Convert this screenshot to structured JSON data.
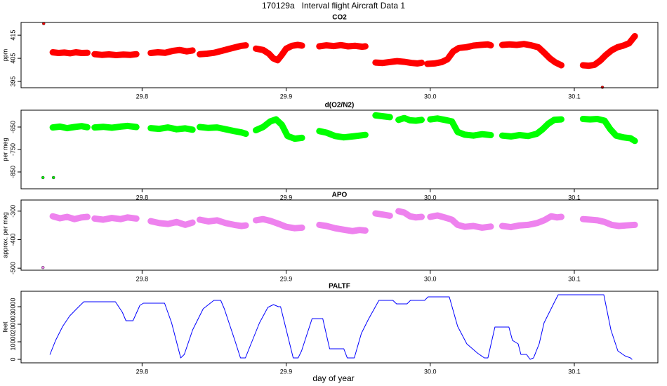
{
  "title": "170129a   Interval flight Aircraft Data 1",
  "xlabel": "day of year",
  "chart_data": [
    {
      "type": "scatter",
      "title": "CO2",
      "ylabel": "ppm",
      "color": "#ff0000",
      "xlim": [
        29.716,
        30.158
      ],
      "ylim": [
        392.3,
        420.5
      ],
      "xticks": [
        29.8,
        29.9,
        {
          "value": 30,
          "label": "30.0"
        },
        30.1
      ],
      "yticks": [
        395,
        405,
        415
      ],
      "x": [
        29.7317,
        null,
        29.738,
        29.742,
        29.746,
        29.75,
        29.754,
        29.758,
        29.762,
        null,
        29.767,
        29.772,
        29.777,
        29.782,
        29.787,
        29.792,
        29.796,
        null,
        29.806,
        29.811,
        29.816,
        29.821,
        29.826,
        29.831,
        29.835,
        null,
        29.84,
        29.845,
        29.85,
        29.855,
        29.86,
        29.865,
        29.869,
        29.872,
        null,
        29.879,
        29.884,
        29.888,
        29.891,
        29.894,
        29.897,
        29.9,
        29.904,
        29.908,
        29.911,
        null,
        29.923,
        29.928,
        29.933,
        29.938,
        29.943,
        29.948,
        29.953,
        29.955,
        null,
        29.962,
        29.967,
        29.972,
        29.977,
        29.982,
        29.987,
        29.991,
        29.994,
        null,
        29.998,
        30.003,
        30.008,
        30.012,
        30.016,
        30.02,
        30.025,
        30.03,
        30.035,
        30.04,
        30.042,
        null,
        30.05,
        30.055,
        30.06,
        30.065,
        30.07,
        30.075,
        30.079,
        30.083,
        30.087,
        30.091,
        null,
        30.106,
        30.11,
        30.114,
        30.118,
        30.122,
        30.126,
        30.13,
        30.134,
        30.138,
        30.141,
        30.142,
        null,
        30.1195
      ],
      "values": [
        420,
        null,
        407.6,
        407.3,
        407.5,
        407.2,
        407.6,
        407.3,
        407.4,
        null,
        406.8,
        406.5,
        406.7,
        406.4,
        406.6,
        406.5,
        406.8,
        null,
        407.3,
        407.6,
        407.4,
        408.2,
        408.6,
        408.0,
        408.4,
        null,
        406.8,
        407.0,
        407.4,
        408.2,
        409.0,
        409.8,
        410.4,
        410.6,
        null,
        409.2,
        408.6,
        407.0,
        405.0,
        404.2,
        406.5,
        409.2,
        410.4,
        410.8,
        410.5,
        null,
        410.2,
        410.6,
        410.3,
        410.7,
        410.2,
        410.4,
        410.0,
        410.2,
        null,
        403.2,
        403.0,
        403.4,
        403.8,
        403.5,
        403.0,
        402.8,
        403.1,
        null,
        402.6,
        402.8,
        403.4,
        404.6,
        408.0,
        409.5,
        409.8,
        410.5,
        410.8,
        411.0,
        410.6,
        null,
        410.8,
        411.0,
        410.8,
        411.2,
        410.6,
        409.8,
        407.5,
        405.0,
        403.2,
        402.0,
        null,
        402.0,
        401.8,
        402.2,
        404.0,
        406.5,
        408.5,
        409.8,
        410.5,
        411.5,
        413.8,
        414.6,
        null,
        392.5
      ]
    },
    {
      "type": "scatter",
      "title": "d(O2/N2)",
      "ylabel": "per meg",
      "color": "#00ff00",
      "xlim": [
        29.716,
        30.158
      ],
      "ylim": [
        -925,
        -575
      ],
      "xticks": [
        29.8,
        29.9,
        {
          "value": 30,
          "label": "30.0"
        },
        30.1
      ],
      "yticks": [
        -850,
        -750,
        -650
      ],
      "x": [
        29.7312,
        null,
        29.7385,
        null,
        29.738,
        29.743,
        29.748,
        29.753,
        29.758,
        29.762,
        null,
        29.767,
        29.773,
        29.779,
        29.785,
        29.79,
        29.796,
        null,
        29.806,
        29.812,
        29.818,
        29.824,
        29.83,
        29.835,
        null,
        29.84,
        29.846,
        29.852,
        29.858,
        29.864,
        29.869,
        29.872,
        null,
        29.879,
        29.884,
        29.889,
        29.893,
        29.897,
        29.901,
        29.906,
        29.911,
        null,
        29.923,
        29.928,
        29.934,
        29.94,
        29.946,
        29.951,
        29.955,
        null,
        29.962,
        29.967,
        29.972,
        null,
        29.978,
        29.982,
        29.986,
        29.99,
        29.994,
        null,
        30.0,
        30.005,
        30.01,
        30.015,
        30.019,
        30.024,
        30.03,
        30.036,
        30.042,
        null,
        30.05,
        30.056,
        30.062,
        30.068,
        30.074,
        30.078,
        30.082,
        30.086,
        30.091,
        null,
        30.106,
        30.111,
        30.116,
        30.121,
        30.125,
        30.129,
        30.134,
        30.139,
        30.142
      ],
      "values": [
        -875,
        null,
        -875,
        null,
        -652,
        -648,
        -655,
        -650,
        -646,
        -651,
        null,
        -652,
        -649,
        -653,
        -648,
        -645,
        -650,
        null,
        -655,
        -658,
        -652,
        -660,
        -656,
        -662,
        null,
        -650,
        -654,
        -652,
        -660,
        -668,
        -674,
        -680,
        null,
        -664,
        -650,
        -625,
        -616,
        -640,
        -690,
        -702,
        -698,
        null,
        -668,
        -675,
        -690,
        -696,
        -692,
        -688,
        -685,
        null,
        -598,
        -602,
        -606,
        null,
        -618,
        -610,
        -620,
        -622,
        -618,
        null,
        -616,
        -612,
        -618,
        -625,
        -672,
        -684,
        -688,
        -682,
        -686,
        null,
        -688,
        -692,
        -686,
        -690,
        -680,
        -660,
        -635,
        -618,
        -616,
        null,
        -614,
        -616,
        -614,
        -622,
        -660,
        -688,
        -696,
        -700,
        -712
      ]
    },
    {
      "type": "scatter",
      "title": "APO",
      "ylabel": "approx. per meg",
      "color": "#ee82ee",
      "xlim": [
        29.716,
        30.158
      ],
      "ylim": [
        -507,
        -261
      ],
      "xticks": [
        29.8,
        29.9,
        {
          "value": 30,
          "label": "30.0"
        },
        30.1
      ],
      "yticks": [
        -500,
        -400,
        -300
      ],
      "x": [
        29.7312,
        null,
        29.738,
        29.743,
        29.748,
        29.753,
        29.758,
        29.762,
        null,
        29.767,
        29.773,
        29.779,
        29.785,
        29.79,
        29.796,
        null,
        29.806,
        29.812,
        29.818,
        29.824,
        29.83,
        29.835,
        null,
        29.84,
        29.846,
        29.852,
        29.858,
        29.864,
        29.869,
        29.872,
        null,
        29.879,
        29.884,
        29.889,
        29.895,
        29.9,
        29.906,
        29.911,
        null,
        29.923,
        29.928,
        29.934,
        29.94,
        29.946,
        29.951,
        29.955,
        null,
        29.962,
        29.967,
        29.972,
        null,
        29.978,
        29.982,
        29.986,
        29.99,
        29.994,
        null,
        30.0,
        30.005,
        30.01,
        30.015,
        30.019,
        30.024,
        30.03,
        30.036,
        30.042,
        null,
        30.05,
        30.056,
        30.062,
        30.068,
        30.074,
        30.079,
        30.084,
        30.088,
        30.091,
        null,
        30.106,
        30.111,
        30.116,
        30.121,
        30.126,
        30.131,
        30.136,
        30.142
      ],
      "values": [
        -497.6,
        null,
        -318,
        -325,
        -320,
        -328,
        -322,
        -320,
        null,
        -326,
        -330,
        -324,
        -328,
        -322,
        -326,
        null,
        -335,
        -342,
        -345,
        -338,
        -348,
        -340,
        null,
        -330,
        -336,
        -332,
        -342,
        -348,
        -352,
        -350,
        null,
        -332,
        -328,
        -334,
        -345,
        -355,
        -360,
        -358,
        null,
        -348,
        -352,
        -360,
        -365,
        -370,
        -366,
        -368,
        null,
        -308,
        -312,
        -316,
        null,
        -300,
        -305,
        -318,
        -322,
        -320,
        null,
        -320,
        -315,
        -322,
        -330,
        -348,
        -355,
        -352,
        -358,
        -354,
        null,
        -352,
        -356,
        -350,
        -348,
        -342,
        -332,
        -318,
        -322,
        -320,
        null,
        -328,
        -330,
        -332,
        -338,
        -348,
        -352,
        -350,
        -348
      ]
    },
    {
      "type": "line",
      "title": "PALTF",
      "ylabel": "feet",
      "color": "#0000ff",
      "xlim": [
        29.716,
        30.158
      ],
      "ylim": [
        -2000,
        38800
      ],
      "xticks": [
        29.8,
        29.9,
        {
          "value": 30,
          "label": "30.0"
        },
        30.1
      ],
      "yticks": [
        0,
        10000,
        20000,
        30000
      ],
      "x": [
        29.7361,
        29.74,
        29.7449,
        29.7498,
        29.7546,
        29.7595,
        29.7668,
        29.7815,
        29.7863,
        29.7888,
        29.7937,
        29.7985,
        29.801,
        29.8156,
        29.8205,
        29.8268,
        29.8293,
        29.8351,
        29.8424,
        29.8498,
        29.8546,
        29.8571,
        29.8644,
        29.8683,
        29.8717,
        29.8756,
        29.8815,
        29.8873,
        29.8912,
        29.8946,
        29.8961,
        29.9049,
        29.9083,
        29.9107,
        29.918,
        29.9254,
        29.9302,
        29.94,
        29.9424,
        29.9473,
        29.9522,
        29.9571,
        29.9644,
        29.9741,
        29.9766,
        29.9839,
        29.9863,
        29.9961,
        29.9985,
        30.0132,
        30.019,
        30.0254,
        30.0327,
        30.0376,
        30.04,
        30.0449,
        30.0546,
        30.0571,
        30.061,
        30.0629,
        30.0668,
        30.0693,
        30.0717,
        30.0756,
        30.079,
        30.0863,
        30.0888,
        30.1205,
        30.1254,
        30.1302,
        30.1351,
        30.139,
        30.14
      ],
      "values": [
        2800,
        10800,
        18800,
        24800,
        28800,
        32800,
        32800,
        32800,
        26800,
        22000,
        22000,
        30800,
        32000,
        32000,
        20800,
        800,
        2800,
        16800,
        28800,
        33600,
        33600,
        28800,
        10800,
        800,
        800,
        8800,
        20800,
        29600,
        31200,
        30000,
        30000,
        800,
        800,
        4800,
        23200,
        23200,
        6000,
        6000,
        800,
        800,
        14800,
        22800,
        33600,
        33600,
        31600,
        31600,
        33600,
        33600,
        35600,
        35600,
        18800,
        8800,
        3600,
        800,
        800,
        18400,
        18400,
        10800,
        8800,
        2800,
        2800,
        0,
        800,
        8800,
        20800,
        32800,
        36800,
        36800,
        16800,
        4800,
        2000,
        800,
        0
      ]
    }
  ]
}
